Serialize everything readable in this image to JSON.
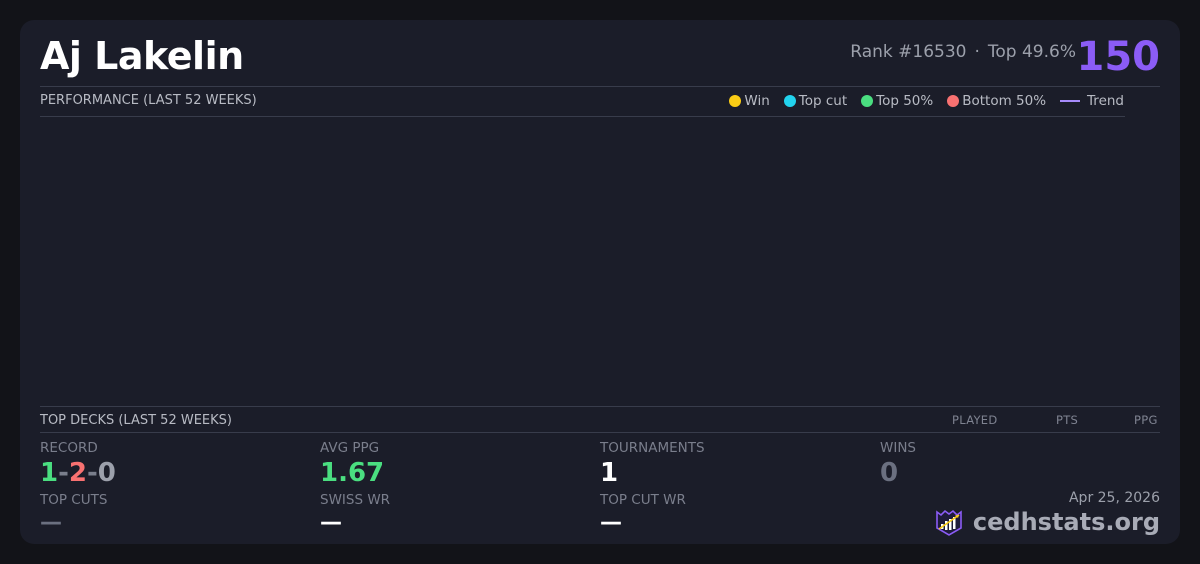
{
  "player": {
    "name": "Aj Lakelin",
    "rank": "Rank #16530",
    "separator": "·",
    "top_percent": "Top 49.6%",
    "score": "150"
  },
  "performance": {
    "title": "PERFORMANCE (LAST 52 WEEKS)",
    "legend": [
      {
        "label": "Win",
        "color": "#facc15"
      },
      {
        "label": "Top cut",
        "color": "#22d3ee"
      },
      {
        "label": "Top 50%",
        "color": "#4ade80"
      },
      {
        "label": "Bottom 50%",
        "color": "#f87171"
      },
      {
        "label": "Trend",
        "color": "#a78bfa"
      }
    ]
  },
  "top_decks": {
    "title": "TOP DECKS (LAST 52 WEEKS)",
    "columns": [
      "PLAYED",
      "PTS",
      "PPG"
    ]
  },
  "stats": {
    "record": {
      "label": "RECORD",
      "wins": "1",
      "losses": "2",
      "draws": "0",
      "sep": "-"
    },
    "avg_ppg": {
      "label": "AVG PPG",
      "value": "1.67"
    },
    "tournaments": {
      "label": "TOURNAMENTS",
      "value": "1"
    },
    "wins": {
      "label": "WINS",
      "value": "0"
    },
    "top_cuts": {
      "label": "TOP CUTS",
      "value": "—"
    },
    "swiss_wr": {
      "label": "SWISS WR",
      "value": "—"
    },
    "top_cut_wr": {
      "label": "TOP CUT WR",
      "value": "—"
    }
  },
  "footer": {
    "date": "Apr 25, 2026",
    "brand": "cedhstats.org",
    "logo_icon": "crown-chart-icon"
  }
}
